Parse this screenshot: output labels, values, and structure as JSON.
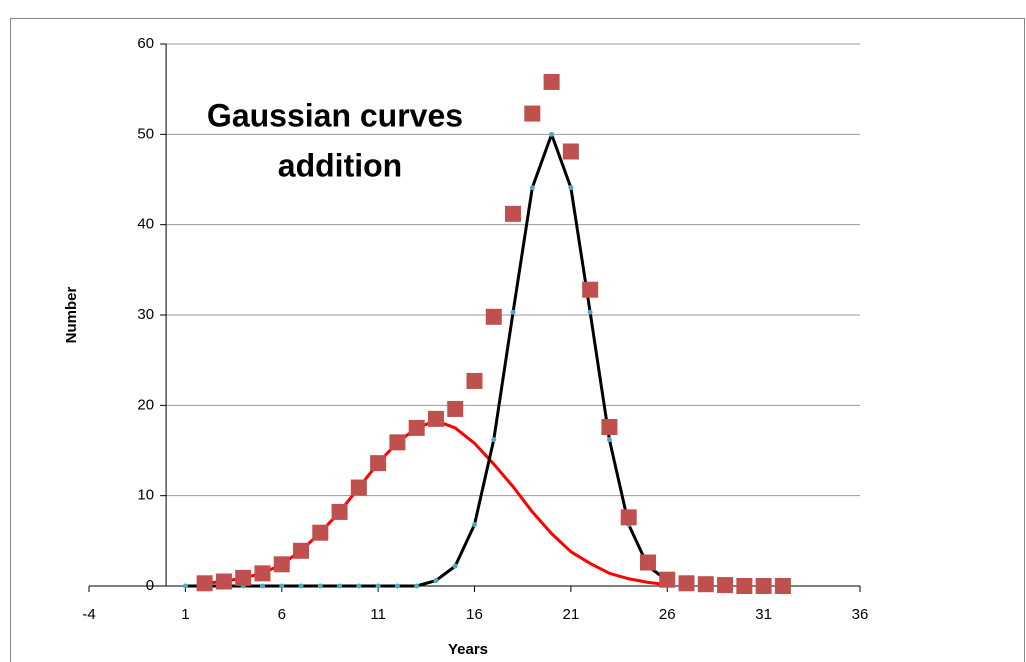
{
  "chart_data": {
    "type": "scatter",
    "annotation": [
      "Gaussian curves",
      "addition"
    ],
    "x_label": "Years",
    "y_label": "Number",
    "xlim": [
      -4,
      36
    ],
    "xticks": [
      -4,
      1,
      6,
      11,
      16,
      21,
      26,
      31,
      36
    ],
    "ylim": [
      0,
      60
    ],
    "yticks": [
      0,
      10,
      20,
      30,
      40,
      50,
      60
    ],
    "grid": true,
    "series": [
      {
        "color": "#ff0000",
        "marker": "none",
        "line": true,
        "x": [
          2,
          3,
          4,
          5,
          6,
          7,
          8,
          9,
          10,
          11,
          12,
          13,
          14,
          15,
          16,
          17,
          18,
          19,
          20,
          21,
          22,
          23,
          24,
          25,
          26
        ],
        "values": [
          0.3,
          0.5,
          0.9,
          1.4,
          2.4,
          3.9,
          5.9,
          8.2,
          10.9,
          13.6,
          15.9,
          17.5,
          18.3,
          17.5,
          15.8,
          13.5,
          11,
          8.2,
          5.8,
          3.8,
          2.5,
          1.4,
          0.8,
          0.4,
          0.15
        ]
      },
      {
        "color": "#000000",
        "marker": "dot",
        "marker_color": "#4bacc6",
        "line": true,
        "x": [
          1,
          2,
          3,
          4,
          5,
          6,
          7,
          8,
          9,
          10,
          11,
          12,
          13,
          14,
          15,
          16,
          17,
          18,
          19,
          20,
          21,
          22,
          23,
          24,
          25,
          26
        ],
        "values": [
          0,
          0,
          0,
          0,
          0,
          0,
          0,
          0,
          0,
          0,
          0,
          0,
          0,
          0.6,
          2.2,
          6.8,
          16.2,
          30.3,
          44.1,
          50,
          44.1,
          30.3,
          16.2,
          6.8,
          2.2,
          0.6
        ]
      },
      {
        "color": "#c0504d",
        "marker": "square",
        "line": false,
        "x": [
          2,
          3,
          4,
          5,
          6,
          7,
          8,
          9,
          10,
          11,
          12,
          13,
          14,
          15,
          16,
          17,
          18,
          19,
          20,
          21,
          22,
          23,
          24,
          25,
          26,
          27,
          28,
          29,
          30,
          31,
          32
        ],
        "values": [
          0.3,
          0.5,
          0.9,
          1.4,
          2.4,
          3.9,
          5.9,
          8.2,
          10.9,
          13.6,
          15.9,
          17.5,
          18.5,
          19.6,
          22.7,
          29.8,
          41.2,
          52.3,
          55.8,
          48.1,
          32.8,
          17.6,
          7.6,
          2.6,
          0.7,
          0.3,
          0.2,
          0.1,
          0,
          0,
          0
        ]
      }
    ]
  }
}
